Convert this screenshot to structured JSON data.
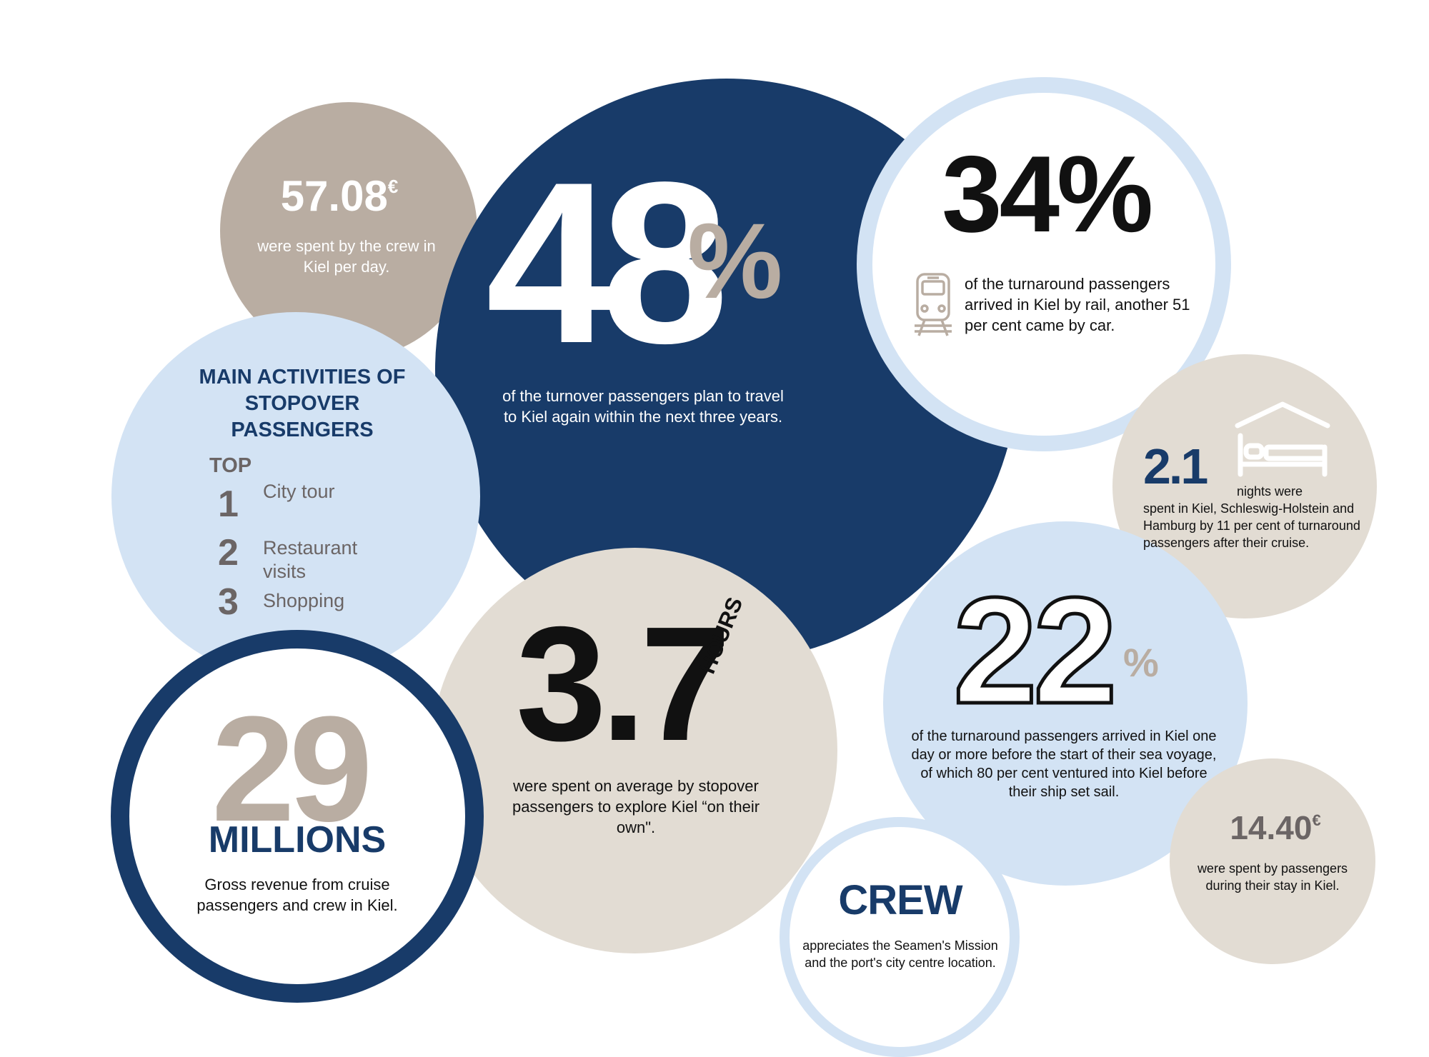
{
  "colors": {
    "navy": "#183b69",
    "taupe": "#b9ada2",
    "light_taupe": "#e2dcd3",
    "light_blue": "#d3e3f4",
    "grey_text": "#6b6565",
    "black": "#111111"
  },
  "crew_spending": {
    "value": "57.08",
    "currency": "€",
    "description": "were spent by the crew in Kiel per day."
  },
  "return_plan": {
    "number": "48",
    "percent_sign": "%",
    "description": "of the turnover passengers plan to travel to Kiel again within the next three years."
  },
  "rail_arrivals": {
    "value": "34%",
    "icon": "train-icon",
    "description": "of the turnaround passengers arrived in Kiel by rail, another 51 per cent came by car."
  },
  "activities": {
    "title": "MAIN ACTIVITIES OF STOPOVER PASSENGERS",
    "top_label": "TOP",
    "items": [
      {
        "rank": "1",
        "label": "City tour"
      },
      {
        "rank": "2",
        "label": "Restaurant visits"
      },
      {
        "rank": "3",
        "label": "Shopping"
      }
    ]
  },
  "nights": {
    "value": "2.1",
    "icon": "bed-icon",
    "lead": "nights were",
    "description": "spent in Kiel, Schleswig-Holstein and Hamburg by 11 per cent of turnaround passengers after their cruise."
  },
  "stopover_hours": {
    "value": "3.7",
    "unit": "HOURS",
    "description": "were spent on average by stopover passengers to explore Kiel “on their own\"."
  },
  "revenue": {
    "value": "29",
    "unit": "MILLIONS",
    "description": "Gross revenue from cruise passengers and crew in Kiel."
  },
  "early_arrival": {
    "number": "22",
    "percent_sign": "%",
    "description": "of the turnaround passengers arrived in Kiel one day or more before the start of their sea voyage, of which 80 per cent ventured into Kiel before their ship set sail."
  },
  "passenger_spending": {
    "value": "14.40",
    "currency": "€",
    "description": "were spent by passengers during their stay in Kiel."
  },
  "crew": {
    "title": "CREW",
    "description": "appreciates the Seamen's Mission and the port's city centre location."
  }
}
